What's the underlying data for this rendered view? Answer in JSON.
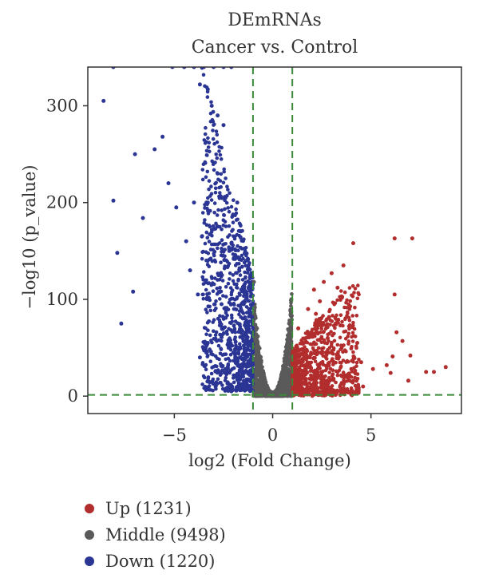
{
  "chart_data": {
    "type": "scatter",
    "title": "DEmRNAs",
    "subtitle": "Cancer vs. Control",
    "xlabel": "log2 (Fold Change)",
    "ylabel": "-log10 (p_value)",
    "xlim": [
      -9.4,
      9.6
    ],
    "ylim": [
      -18,
      340
    ],
    "xticks": [
      -5,
      0,
      5
    ],
    "yticks": [
      0,
      100,
      200,
      300
    ],
    "fc_threshold": 1,
    "p_threshold": 1.3,
    "grid": false,
    "legend_position": "bottom-left",
    "colors": {
      "up": "#b22d2d",
      "middle": "#5a5a5a",
      "down": "#2b3594",
      "threshold": "#3a8a3a"
    },
    "series": [
      {
        "name": "Up (1231)",
        "key": "up",
        "points": [
          [
            6.2,
            163
          ],
          [
            7.1,
            163
          ],
          [
            4.1,
            158
          ],
          [
            6.2,
            105
          ],
          [
            3.6,
            135
          ],
          [
            3.0,
            127
          ],
          [
            2.6,
            118
          ],
          [
            3.3,
            112
          ],
          [
            2.1,
            110
          ],
          [
            3.5,
            103
          ],
          [
            2.4,
            98
          ],
          [
            6.3,
            66
          ],
          [
            6.6,
            57
          ],
          [
            7.0,
            42
          ],
          [
            6.1,
            41
          ],
          [
            5.8,
            32
          ],
          [
            7.8,
            25
          ],
          [
            8.2,
            25
          ],
          [
            8.8,
            30
          ],
          [
            4.5,
            35
          ],
          [
            4.0,
            28
          ],
          [
            5.1,
            28
          ],
          [
            6.0,
            24
          ],
          [
            6.9,
            16
          ],
          [
            4.6,
            10
          ],
          [
            3.8,
            22
          ],
          [
            3.1,
            18
          ],
          [
            2.7,
            14
          ],
          [
            2.3,
            28
          ],
          [
            1.9,
            40
          ],
          [
            1.6,
            55
          ],
          [
            1.3,
            70
          ],
          [
            1.2,
            35
          ],
          [
            1.5,
            20
          ],
          [
            2.0,
            8
          ],
          [
            2.8,
            60
          ],
          [
            3.2,
            75
          ],
          [
            2.2,
            85
          ],
          [
            1.8,
            90
          ],
          [
            4.3,
            55
          ]
        ]
      },
      {
        "name": "Middle (9498)",
        "key": "middle",
        "points": [
          [
            -0.95,
            85
          ],
          [
            -0.9,
            60
          ],
          [
            -0.8,
            40
          ],
          [
            -0.7,
            28
          ],
          [
            -0.6,
            18
          ],
          [
            -0.5,
            12
          ],
          [
            -0.4,
            6
          ],
          [
            -0.3,
            3
          ],
          [
            -0.2,
            1.5
          ],
          [
            0,
            0.5
          ],
          [
            0.2,
            1.5
          ],
          [
            0.3,
            3
          ],
          [
            0.4,
            8
          ],
          [
            0.5,
            14
          ],
          [
            0.6,
            22
          ],
          [
            0.7,
            32
          ],
          [
            0.8,
            48
          ],
          [
            0.9,
            70
          ],
          [
            0.95,
            100
          ],
          [
            -0.95,
            118
          ],
          [
            -0.85,
            10
          ],
          [
            0.85,
            10
          ],
          [
            -0.6,
            5
          ],
          [
            0.6,
            5
          ]
        ]
      },
      {
        "name": "Down (1220)",
        "key": "down",
        "points": [
          [
            -8.6,
            305
          ],
          [
            -8.1,
            202
          ],
          [
            -7.9,
            148
          ],
          [
            -7.7,
            75
          ],
          [
            -7.1,
            108
          ],
          [
            -7.0,
            250
          ],
          [
            -6.6,
            184
          ],
          [
            -6.0,
            255
          ],
          [
            -5.6,
            268
          ],
          [
            -5.3,
            220
          ],
          [
            -4.9,
            195
          ],
          [
            -4.4,
            160
          ],
          [
            -4.0,
            200
          ],
          [
            -3.7,
            322
          ],
          [
            -3.3,
            317
          ],
          [
            -3.1,
            300
          ],
          [
            -2.8,
            290
          ],
          [
            -2.5,
            280
          ],
          [
            -2.8,
            230
          ],
          [
            -3.3,
            200
          ],
          [
            -3.6,
            165
          ],
          [
            -4.2,
            130
          ],
          [
            -3.8,
            105
          ],
          [
            -3.3,
            55
          ],
          [
            -3.7,
            40
          ],
          [
            -2.9,
            10
          ],
          [
            -2.1,
            5
          ],
          [
            -1.5,
            20
          ],
          [
            -1.3,
            60
          ],
          [
            -1.6,
            110
          ],
          [
            -2.2,
            150
          ],
          [
            -1.8,
            200
          ],
          [
            -2.6,
            95
          ],
          [
            -2.0,
            45
          ],
          [
            -5.1,
            340
          ],
          [
            -4.5,
            340
          ],
          [
            -4.0,
            340
          ],
          [
            -3.5,
            340
          ],
          [
            -3.0,
            340
          ],
          [
            -2.5,
            340
          ],
          [
            -2.1,
            340
          ],
          [
            -8.1,
            340
          ]
        ]
      }
    ]
  }
}
